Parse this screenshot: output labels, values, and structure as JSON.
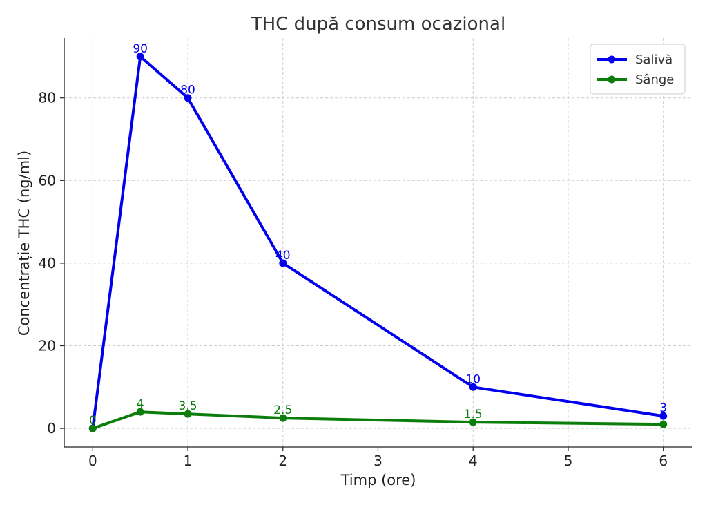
{
  "chart_data": {
    "type": "line",
    "title": "THC după consum ocazional",
    "xlabel": "Timp (ore)",
    "ylabel": "Concentrație THC (ng/ml)",
    "x": [
      0,
      0.5,
      1,
      2,
      4,
      6
    ],
    "xticks": [
      0,
      1,
      2,
      3,
      4,
      5,
      6
    ],
    "yticks": [
      0,
      20,
      40,
      60,
      80
    ],
    "xlim": [
      -0.3,
      6.3
    ],
    "ylim": [
      -4.5,
      94.5
    ],
    "grid": true,
    "legend_position": "top-right",
    "series": [
      {
        "name": "Salivă",
        "color": "#0000ee",
        "values": [
          0,
          90,
          80,
          40,
          10,
          3
        ],
        "labels": [
          "0",
          "90",
          "80",
          "40",
          "10",
          "3"
        ]
      },
      {
        "name": "Sânge",
        "color": "#0a7d0a",
        "values": [
          0,
          4,
          3.5,
          2.5,
          1.5,
          1
        ],
        "labels": [
          "0",
          "4",
          "3.5",
          "2.5",
          "1.5",
          ""
        ]
      }
    ]
  }
}
